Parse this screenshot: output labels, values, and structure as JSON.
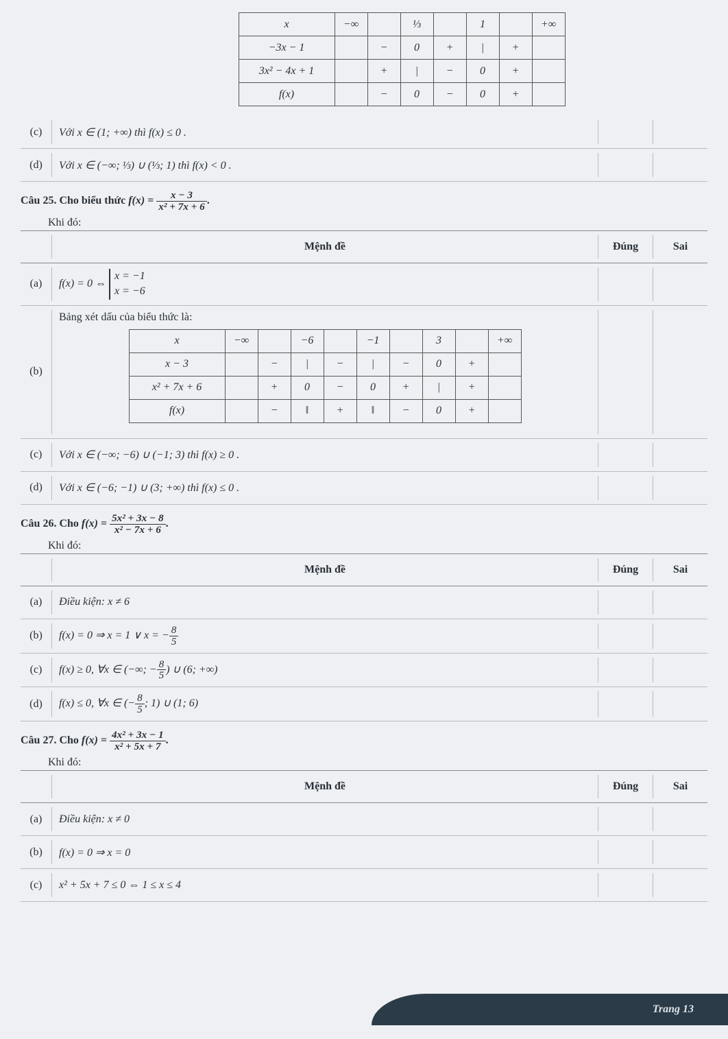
{
  "footer": "Trang 13",
  "q24": {
    "sign_header": {
      "x": "x",
      "ninf": "−∞",
      "v1": "⅓",
      "v2": "1",
      "pinf": "+∞"
    },
    "rows": [
      {
        "label": "−3x − 1",
        "c1": "−",
        "c2": "0",
        "c3": "+",
        "c4": "|",
        "c5": "+"
      },
      {
        "label": "3x² − 4x + 1",
        "c1": "+",
        "c2": "|",
        "c3": "−",
        "c4": "0",
        "c5": "+"
      },
      {
        "label": "f(x)",
        "c1": "−",
        "c2": "0",
        "c3": "−",
        "c4": "0",
        "c5": "+"
      }
    ],
    "c_label": "(c)",
    "c_stmt": "Với  x ∈ (1; +∞)  thì  f(x) ≤ 0 .",
    "d_label": "(d)",
    "d_stmt": "Với  x ∈ (−∞; ⅓) ∪ (⅓; 1)  thì  f(x) < 0 ."
  },
  "q25": {
    "title": "Câu 25. Cho biểu thức",
    "func_l": "f(x) =",
    "func_num": "x − 3",
    "func_den": "x² + 7x + 6",
    "khi": "Khi đó:",
    "hdr_m": "Mệnh đề",
    "hdr_d": "Đúng",
    "hdr_s": "Sai",
    "a_label": "(a)",
    "a_lead": "f(x) = 0 ⇔",
    "a_case1": "x = −1",
    "a_case2": "x = −6",
    "b_label": "(b)",
    "b_intro": "Bảng xét dấu của biểu thức là:",
    "sign_header": {
      "x": "x",
      "ninf": "−∞",
      "v1": "−6",
      "v2": "−1",
      "v3": "3",
      "pinf": "+∞"
    },
    "rows": [
      {
        "label": "x − 3",
        "c1": "−",
        "c2": "|",
        "c3": "−",
        "c4": "|",
        "c5": "−",
        "c6": "0",
        "c7": "+"
      },
      {
        "label": "x² + 7x + 6",
        "c1": "+",
        "c2": "0",
        "c3": "−",
        "c4": "0",
        "c5": "+",
        "c6": "|",
        "c7": "+"
      },
      {
        "label": "f(x)",
        "c1": "−",
        "c2": "‖",
        "c3": "+",
        "c4": "‖",
        "c5": "−",
        "c6": "0",
        "c7": "+"
      }
    ],
    "c_label": "(c)",
    "c_stmt": "Với  x ∈ (−∞; −6) ∪ (−1; 3)  thì  f(x) ≥ 0 .",
    "d_label": "(d)",
    "d_stmt": "Với  x ∈ (−6; −1) ∪ (3; +∞)  thì  f(x) ≤ 0 ."
  },
  "q26": {
    "title": "Câu 26. Cho",
    "func_l": "f(x) =",
    "func_num": "5x² + 3x − 8",
    "func_den": "x² − 7x + 6",
    "khi": "Khi đó:",
    "hdr_m": "Mệnh đề",
    "hdr_d": "Đúng",
    "hdr_s": "Sai",
    "a_label": "(a)",
    "a_stmt": "Điều kiện:  x ≠ 6",
    "b_label": "(b)",
    "b_lead": "f(x) = 0 ⇒ x = 1 ∨ x = −",
    "b_num": "8",
    "b_den": "5",
    "c_label": "(c)",
    "c_lead": "f(x) ≥ 0, ∀x ∈ (−∞; −",
    "c_num": "8",
    "c_den": "5",
    "c_tail": ") ∪ (6; +∞)",
    "d_label": "(d)",
    "d_lead": "f(x) ≤ 0, ∀x ∈ (−",
    "d_num": "8",
    "d_den": "5",
    "d_tail": "; 1) ∪ (1; 6)"
  },
  "q27": {
    "title": "Câu 27. Cho",
    "func_l": "f(x) =",
    "func_num": "4x² + 3x − 1",
    "func_den": "x² + 5x + 7",
    "khi": "Khi đó:",
    "hdr_m": "Mệnh đề",
    "hdr_d": "Đúng",
    "hdr_s": "Sai",
    "a_label": "(a)",
    "a_stmt": "Điều kiện:  x ≠ 0",
    "b_label": "(b)",
    "b_stmt": "f(x) = 0 ⇒ x = 0",
    "c_label": "(c)",
    "c_stmt": "x² + 5x + 7 ≤ 0 ⇔ 1 ≤ x ≤ 4"
  }
}
